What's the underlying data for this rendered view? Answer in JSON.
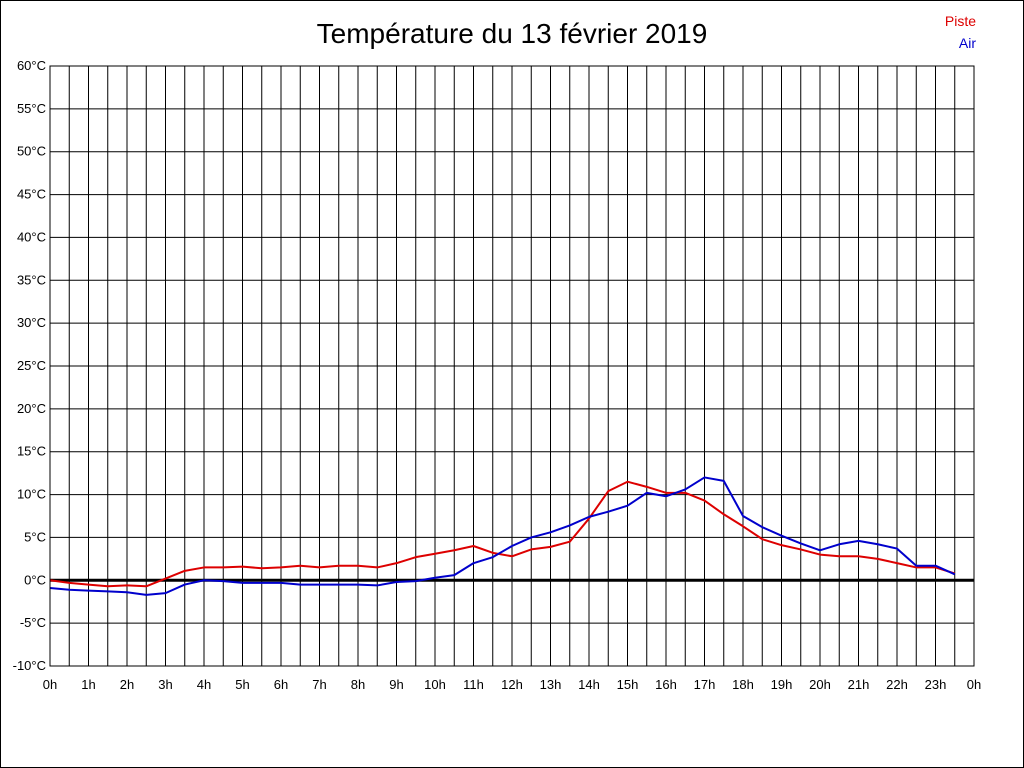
{
  "chart_data": {
    "type": "line",
    "title": "Température du 13 février 2019",
    "xlabel": "",
    "ylabel": "",
    "xlim": [
      0,
      24
    ],
    "ylim": [
      -10,
      60
    ],
    "grid": true,
    "legend_position": "top-right",
    "x_tick_labels": [
      "0h",
      "1h",
      "2h",
      "3h",
      "4h",
      "5h",
      "6h",
      "7h",
      "8h",
      "9h",
      "10h",
      "11h",
      "12h",
      "13h",
      "14h",
      "15h",
      "16h",
      "17h",
      "18h",
      "19h",
      "20h",
      "21h",
      "22h",
      "23h",
      "0h"
    ],
    "y_ticks": [
      -10,
      -5,
      0,
      5,
      10,
      15,
      20,
      25,
      30,
      35,
      40,
      45,
      50,
      55,
      60
    ],
    "y_tick_labels": [
      "-10°C",
      "-5°C",
      "0°C",
      "5°C",
      "10°C",
      "15°C",
      "20°C",
      "25°C",
      "30°C",
      "35°C",
      "40°C",
      "45°C",
      "50°C",
      "55°C",
      "60°C"
    ],
    "x": [
      0,
      0.5,
      1,
      1.5,
      2,
      2.5,
      3,
      3.5,
      4,
      4.5,
      5,
      5.5,
      6,
      6.5,
      7,
      7.5,
      8,
      8.5,
      9,
      9.5,
      10,
      10.5,
      11,
      11.5,
      12,
      12.5,
      13,
      13.5,
      14,
      14.5,
      15,
      15.5,
      16,
      16.5,
      17,
      17.5,
      18,
      18.5,
      19,
      19.5,
      20,
      20.5,
      21,
      21.5,
      22,
      22.5,
      23,
      23.5
    ],
    "series": [
      {
        "name": "Piste",
        "color": "#dd0000",
        "values": [
          0,
          -0.3,
          -0.5,
          -0.7,
          -0.6,
          -0.7,
          0.2,
          1.1,
          1.5,
          1.5,
          1.6,
          1.4,
          1.5,
          1.7,
          1.5,
          1.7,
          1.7,
          1.5,
          2.0,
          2.7,
          3.1,
          3.5,
          4.0,
          3.2,
          2.8,
          3.6,
          3.9,
          4.5,
          7.2,
          10.4,
          11.5,
          10.9,
          10.2,
          10.2,
          9.3,
          7.7,
          6.3,
          4.8,
          4.1,
          3.6,
          3.0,
          2.8,
          2.8,
          2.5,
          2.0,
          1.5,
          1.5,
          0.8
        ]
      },
      {
        "name": "Air",
        "color": "#0000cc",
        "values": [
          -0.9,
          -1.1,
          -1.2,
          -1.3,
          -1.4,
          -1.7,
          -1.5,
          -0.5,
          0,
          -0.1,
          -0.3,
          -0.3,
          -0.3,
          -0.5,
          -0.5,
          -0.5,
          -0.5,
          -0.6,
          -0.2,
          -0.1,
          0.3,
          0.6,
          2.0,
          2.7,
          4.0,
          5.0,
          5.6,
          6.4,
          7.4,
          8.0,
          8.7,
          10.2,
          9.8,
          10.6,
          12.0,
          11.6,
          7.5,
          6.2,
          5.2,
          4.3,
          3.5,
          4.2,
          4.6,
          4.2,
          3.7,
          1.7,
          1.7,
          0.7
        ]
      }
    ]
  }
}
